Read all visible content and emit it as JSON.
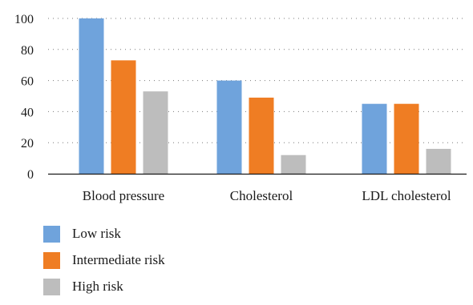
{
  "chart_data": {
    "type": "bar",
    "title": "",
    "xlabel": "",
    "ylabel": "",
    "categories": [
      "Blood pressure",
      "Cholesterol",
      "LDL cholesterol"
    ],
    "series": [
      {
        "name": "Low risk",
        "values": [
          100,
          60,
          45
        ],
        "color": "#6fa3dc"
      },
      {
        "name": "Intermediate risk",
        "values": [
          73,
          49,
          45
        ],
        "color": "#ef7d23"
      },
      {
        "name": "High risk",
        "values": [
          53,
          12,
          16
        ],
        "color": "#bdbdbd"
      }
    ],
    "ylim": [
      0,
      100
    ],
    "yticks": [
      0,
      20,
      40,
      60,
      80,
      100
    ],
    "grid": true,
    "legend_position": "bottom-left"
  }
}
